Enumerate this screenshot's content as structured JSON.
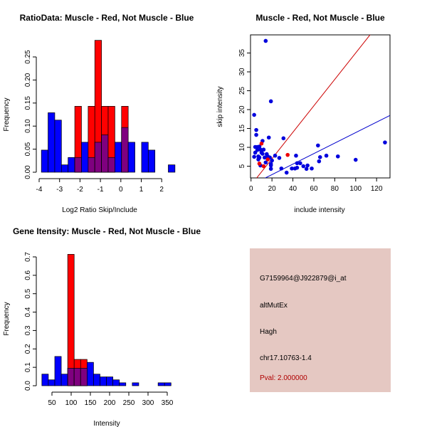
{
  "chart_data": [
    {
      "type": "bar",
      "title": "RatioData: Muscle - Red, Not Muscle - Blue",
      "xlabel": "Log2 Ratio Skip/Include",
      "ylabel": "Frequency",
      "xlim": [
        -4,
        2.7
      ],
      "ylim": [
        0,
        0.29
      ],
      "xticks": [
        -4,
        -3,
        -2,
        -1,
        0,
        1,
        2
      ],
      "yticks": [
        0,
        0.05,
        0.1,
        0.15,
        0.2,
        0.25
      ],
      "ytick_labels": [
        "0.00",
        "0.05",
        "0.10",
        "0.15",
        "0.20",
        "0.25"
      ],
      "bin_start": -3.89,
      "bin_width": 0.327,
      "series": [
        {
          "name": "Not Muscle",
          "color": "#0000ff",
          "values": [
            0.048,
            0.129,
            0.113,
            0.016,
            0.032,
            0.032,
            0.065,
            0.032,
            0.065,
            0.081,
            0.032,
            0.065,
            0.097,
            0.065,
            0,
            0.065,
            0.048,
            0,
            0,
            0.016
          ]
        },
        {
          "name": "Muscle",
          "color": "#ff0000",
          "values": [
            0,
            0,
            0,
            0,
            0,
            0.143,
            0,
            0.143,
            0.286,
            0.143,
            0.143,
            0,
            0.143,
            0,
            0,
            0,
            0,
            0,
            0,
            0
          ]
        }
      ]
    },
    {
      "type": "scatter",
      "title": "Muscle - Red, Not Muscle - Blue",
      "xlabel": "include intensity",
      "ylabel": "skip intensity",
      "xlim": [
        -0.5,
        132.8
      ],
      "ylim": [
        1.9,
        39.8
      ],
      "xticks": [
        0,
        20,
        40,
        60,
        80,
        100,
        120
      ],
      "yticks": [
        5,
        10,
        15,
        20,
        25,
        30,
        35
      ],
      "series": [
        {
          "name": "Not Muscle",
          "color": "#0000ff",
          "points": [
            [
              14,
              38.2
            ],
            [
              19,
              22.2
            ],
            [
              3,
              18.6
            ],
            [
              5,
              14.6
            ],
            [
              5,
              13.3
            ],
            [
              17,
              12.6
            ],
            [
              31,
              12.4
            ],
            [
              11,
              11.7
            ],
            [
              128,
              11.3
            ],
            [
              64,
              10.5
            ],
            [
              4,
              10.1
            ],
            [
              6,
              10.1
            ],
            [
              8,
              10.2
            ],
            [
              9,
              9.4
            ],
            [
              6,
              9.3
            ],
            [
              12,
              9.4
            ],
            [
              4,
              8.6
            ],
            [
              10,
              8.6
            ],
            [
              11,
              8.3
            ],
            [
              15,
              8.2
            ],
            [
              43,
              7.8
            ],
            [
              72,
              7.8
            ],
            [
              83,
              7.6
            ],
            [
              66,
              7.4
            ],
            [
              3,
              7.5
            ],
            [
              7,
              7.6
            ],
            [
              8,
              7.3
            ],
            [
              13,
              7.3
            ],
            [
              16,
              7.6
            ],
            [
              18,
              7.3
            ],
            [
              23,
              7.8
            ],
            [
              27,
              7.2
            ],
            [
              7,
              6.8
            ],
            [
              20,
              6.5
            ],
            [
              100,
              6.7
            ],
            [
              65,
              6.3
            ],
            [
              14,
              6.0
            ],
            [
              44,
              5.8
            ],
            [
              47,
              5.8
            ],
            [
              19,
              5.6
            ],
            [
              9,
              5.2
            ],
            [
              19,
              5.2
            ],
            [
              50,
              5.0
            ],
            [
              54,
              5.2
            ],
            [
              29,
              4.4
            ],
            [
              39,
              4.4
            ],
            [
              42,
              4.4
            ],
            [
              44,
              4.6
            ],
            [
              53,
              4.3
            ],
            [
              58,
              4.4
            ],
            [
              19,
              4.3
            ],
            [
              34,
              3.3
            ]
          ],
          "fit_slope": 0.139
        },
        {
          "name": "Muscle",
          "color": "#ff0000",
          "points": [
            [
              10,
              11
            ],
            [
              35,
              8
            ],
            [
              16,
              6.8
            ],
            [
              8,
              5.7
            ],
            [
              12,
              5
            ]
          ],
          "fit_slope": 0.35
        }
      ]
    },
    {
      "type": "bar",
      "title": "Gene Itensity: Muscle - Red, Not Muscle - Blue",
      "xlabel": "Intensity",
      "ylabel": "Frequency",
      "xlim": [
        23.8,
        360
      ],
      "ylim": [
        0,
        0.72
      ],
      "xticks": [
        50,
        100,
        150,
        200,
        250,
        300,
        350
      ],
      "yticks": [
        0,
        0.1,
        0.2,
        0.3,
        0.4,
        0.5,
        0.6,
        0.7
      ],
      "ytick_labels": [
        "0.0",
        "0.1",
        "0.2",
        "0.3",
        "0.4",
        "0.5",
        "0.6",
        "0.7"
      ],
      "bin_start": 23.8,
      "bin_width": 16.8,
      "series": [
        {
          "name": "Not Muscle",
          "color": "#0000ff",
          "values": [
            0.063,
            0.032,
            0.159,
            0.063,
            0.095,
            0.095,
            0.095,
            0.127,
            0.063,
            0.048,
            0.048,
            0.032,
            0.016,
            0,
            0.016,
            0,
            0,
            0,
            0.016,
            0.016
          ]
        },
        {
          "name": "Muscle",
          "color": "#ff0000",
          "values": [
            0,
            0,
            0,
            0,
            0.714,
            0.143,
            0.143,
            0,
            0,
            0,
            0,
            0,
            0,
            0,
            0,
            0,
            0,
            0,
            0,
            0
          ]
        }
      ]
    }
  ],
  "info": {
    "probe": "G7159964@J922879@i_at",
    "event": "altMutEx",
    "gene": "Hagh",
    "location": "chr17.10763-1.4",
    "pval": "Pval: 2.000000",
    "pval_color": "#b00000"
  }
}
